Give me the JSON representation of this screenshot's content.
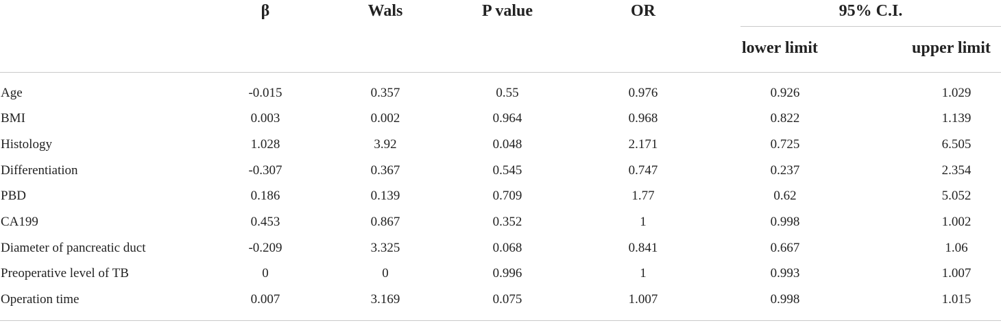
{
  "header": {
    "beta": "β",
    "wals": "Wals",
    "p_value": "P value",
    "or": "OR",
    "ci": "95% C.I.",
    "lower": "lower limit",
    "upper": "upper limit"
  },
  "rows": [
    {
      "label": "Age",
      "beta": "-0.015",
      "wals": "0.357",
      "p": "0.55",
      "or": "0.976",
      "lower": "0.926",
      "upper": "1.029"
    },
    {
      "label": "BMI",
      "beta": "0.003",
      "wals": "0.002",
      "p": "0.964",
      "or": "0.968",
      "lower": "0.822",
      "upper": "1.139"
    },
    {
      "label": "Histology",
      "beta": "1.028",
      "wals": "3.92",
      "p": "0.048",
      "or": "2.171",
      "lower": "0.725",
      "upper": "6.505"
    },
    {
      "label": "Differentiation",
      "beta": "-0.307",
      "wals": "0.367",
      "p": "0.545",
      "or": "0.747",
      "lower": "0.237",
      "upper": "2.354"
    },
    {
      "label": "PBD",
      "beta": "0.186",
      "wals": "0.139",
      "p": "0.709",
      "or": "1.77",
      "lower": "0.62",
      "upper": "5.052"
    },
    {
      "label": "CA199",
      "beta": "0.453",
      "wals": "0.867",
      "p": "0.352",
      "or": "1",
      "lower": "0.998",
      "upper": "1.002"
    },
    {
      "label": "Diameter of pancreatic duct",
      "beta": "-0.209",
      "wals": "3.325",
      "p": "0.068",
      "or": "0.841",
      "lower": "0.667",
      "upper": "1.06"
    },
    {
      "label": "Preoperative level of TB",
      "beta": "0",
      "wals": "0",
      "p": "0.996",
      "or": "1",
      "lower": "0.993",
      "upper": "1.007"
    },
    {
      "label": "Operation time",
      "beta": "0.007",
      "wals": "3.169",
      "p": "0.075",
      "or": "1.007",
      "lower": "0.998",
      "upper": "1.015"
    }
  ]
}
